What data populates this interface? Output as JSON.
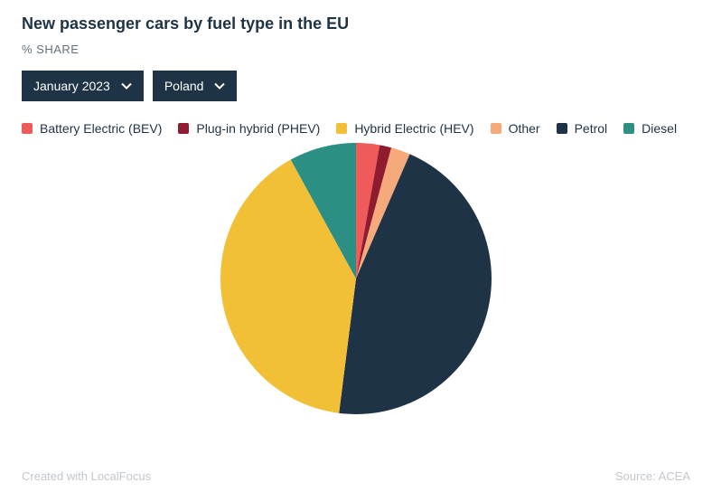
{
  "title": "New passenger cars by fuel type in the EU",
  "subtitle": "% SHARE",
  "title_fontsize": 18,
  "subtitle_fontsize": 13,
  "title_color": "#1e3346",
  "subtitle_color": "#64707a",
  "dropdowns": {
    "period": {
      "label": "January 2023",
      "bg": "#1e3346",
      "fg": "#ffffff",
      "fontsize": 14,
      "padding": "8px 12px"
    },
    "country": {
      "label": "Poland",
      "bg": "#1e3346",
      "fg": "#ffffff",
      "fontsize": 14,
      "padding": "8px 12px"
    }
  },
  "legend": {
    "fontsize": 14,
    "swatch_size": 12,
    "text_color": "#1e3346",
    "items": [
      {
        "label": "Battery Electric (BEV)",
        "color": "#ef5b5b"
      },
      {
        "label": "Plug-in hybrid (PHEV)",
        "color": "#8e1b2e"
      },
      {
        "label": "Hybrid Electric (HEV)",
        "color": "#f2c037"
      },
      {
        "label": "Other",
        "color": "#f6a97a"
      },
      {
        "label": "Petrol",
        "color": "#1e3346"
      },
      {
        "label": "Diesel",
        "color": "#2c8f84"
      }
    ]
  },
  "chart": {
    "type": "pie",
    "diameter": 300,
    "start_angle_deg": 0,
    "background_color": "#ffffff",
    "segments": [
      {
        "label": "Battery Electric (BEV)",
        "value": 2.8,
        "color": "#ef5b5b"
      },
      {
        "label": "Plug-in hybrid (PHEV)",
        "value": 1.4,
        "color": "#8e1b2e"
      },
      {
        "label": "Other",
        "value": 2.3,
        "color": "#f6a97a"
      },
      {
        "label": "Petrol",
        "value": 45.5,
        "color": "#1e3346"
      },
      {
        "label": "Hybrid Electric (HEV)",
        "value": 40.0,
        "color": "#f2c037"
      },
      {
        "label": "Diesel",
        "value": 8.0,
        "color": "#2c8f84"
      }
    ]
  },
  "footer": {
    "left": "Created with LocalFocus",
    "right": "Source:  ACEA",
    "fontsize": 13,
    "color": "#c2c8ce"
  }
}
